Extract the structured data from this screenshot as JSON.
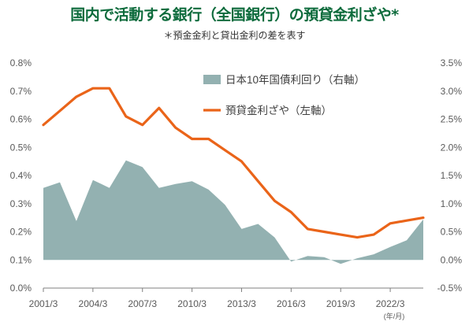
{
  "title": "国内で活動する銀行（全国銀行）の預貸金利ざや*",
  "subtitle": "＊預金金利と貸出金利の差を表す",
  "chart_data": {
    "type": "area",
    "title": "国内で活動する銀行（全国銀行）の預貸金利ざや*",
    "subtitle": "＊預金金利と貸出金利の差を表す",
    "x_tick_labels": [
      "2001/3",
      "2004/3",
      "2007/3",
      "2010/3",
      "2013/3",
      "2016/3",
      "2019/3",
      "2022/3"
    ],
    "x_unit_label": "(年/月)",
    "left_axis": {
      "ylim": [
        0,
        0.8
      ],
      "tick_labels": [
        "0.0%",
        "0.1%",
        "0.2%",
        "0.3%",
        "0.4%",
        "0.5%",
        "0.6%",
        "0.7%",
        "0.8%"
      ]
    },
    "right_axis": {
      "ylim": [
        -0.5,
        3.5
      ],
      "tick_labels": [
        "-0.5%",
        "0.0%",
        "0.5%",
        "1.0%",
        "1.5%",
        "2.0%",
        "2.5%",
        "3.0%",
        "3.5%"
      ]
    },
    "x": [
      2001,
      2002,
      2003,
      2004,
      2005,
      2006,
      2007,
      2008,
      2009,
      2010,
      2011,
      2012,
      2013,
      2014,
      2015,
      2016,
      2017,
      2018,
      2019,
      2020,
      2021,
      2022,
      2023,
      2024
    ],
    "series": [
      {
        "name": "日本10年国債利回り（右軸）",
        "type": "area",
        "axis": "right",
        "color": "#93b1b1",
        "values": [
          1.28,
          1.38,
          0.69,
          1.42,
          1.28,
          1.77,
          1.65,
          1.28,
          1.35,
          1.4,
          1.25,
          0.98,
          0.55,
          0.64,
          0.4,
          -0.03,
          0.07,
          0.05,
          -0.07,
          0.03,
          0.1,
          0.23,
          0.35,
          0.72
        ]
      },
      {
        "name": "預貸金利ざや（左軸）",
        "type": "line",
        "axis": "left",
        "color": "#ea6419",
        "values": [
          0.58,
          0.63,
          0.68,
          0.71,
          0.71,
          0.61,
          0.58,
          0.64,
          0.57,
          0.53,
          0.53,
          0.49,
          0.45,
          0.38,
          0.31,
          0.27,
          0.21,
          0.2,
          0.19,
          0.18,
          0.19,
          0.23,
          0.24,
          0.25
        ]
      }
    ],
    "legend_position": "top-right",
    "grid": false
  }
}
